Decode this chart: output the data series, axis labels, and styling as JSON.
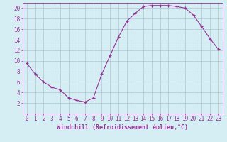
{
  "x": [
    0,
    1,
    2,
    3,
    4,
    5,
    6,
    7,
    8,
    9,
    10,
    11,
    12,
    13,
    14,
    15,
    16,
    17,
    18,
    19,
    20,
    21,
    22,
    23
  ],
  "y": [
    9.5,
    7.5,
    6.0,
    5.0,
    4.5,
    3.0,
    2.5,
    2.2,
    3.0,
    7.5,
    11.0,
    14.5,
    17.5,
    19.0,
    20.3,
    20.5,
    20.5,
    20.5,
    20.3,
    20.0,
    18.7,
    16.5,
    14.2,
    12.2
  ],
  "line_color": "#993399",
  "marker": "+",
  "marker_size": 3,
  "xlim": [
    -0.5,
    23.5
  ],
  "ylim": [
    0,
    21
  ],
  "yticks": [
    2,
    4,
    6,
    8,
    10,
    12,
    14,
    16,
    18,
    20
  ],
  "xticks": [
    0,
    1,
    2,
    3,
    4,
    5,
    6,
    7,
    8,
    9,
    10,
    11,
    12,
    13,
    14,
    15,
    16,
    17,
    18,
    19,
    20,
    21,
    22,
    23
  ],
  "background_color": "#d4eef4",
  "grid_color": "#aabbcc",
  "tick_label_color": "#993399",
  "xlabel": "Windchill (Refroidissement éolien,°C)",
  "font_size": 5.5,
  "xlabel_fontsize": 6.0,
  "linewidth": 0.8,
  "markeredgewidth": 0.9
}
